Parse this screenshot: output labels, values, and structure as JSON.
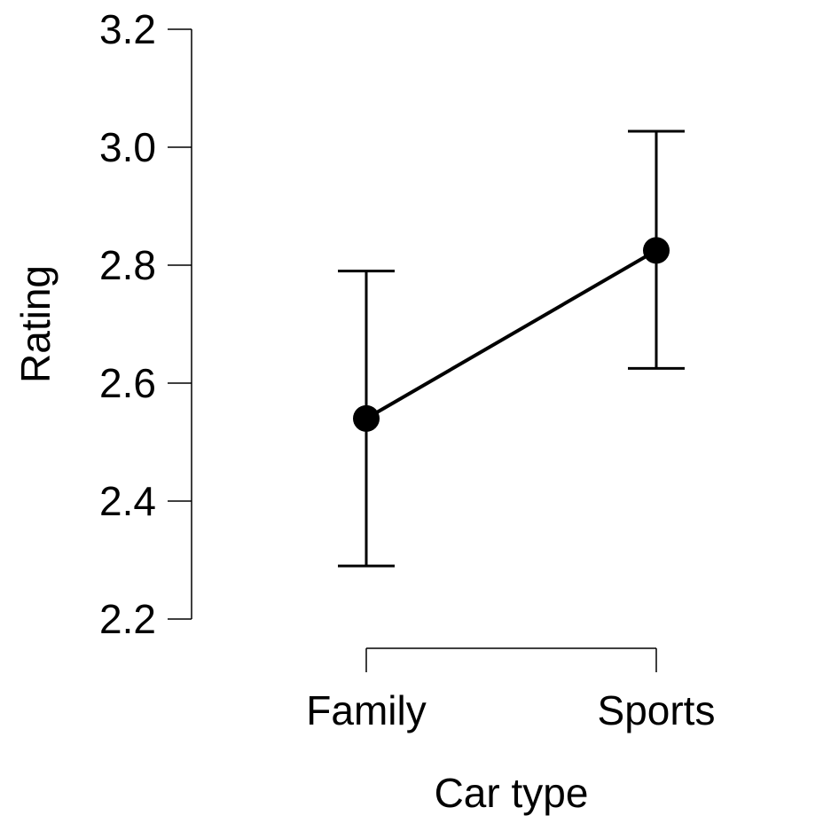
{
  "chart_data": {
    "type": "line",
    "xlabel": "Car type",
    "ylabel": "Rating",
    "ylim": [
      2.2,
      3.2
    ],
    "yticks": [
      "2.2",
      "2.4",
      "2.6",
      "2.8",
      "3.0",
      "3.2"
    ],
    "categories": [
      "Family",
      "Sports"
    ],
    "series": [
      {
        "values": [
          2.54,
          2.825
        ],
        "error_lower": [
          2.29,
          2.625
        ],
        "error_upper": [
          2.79,
          3.027
        ]
      }
    ],
    "grid": false,
    "legend": "none",
    "colors": {
      "ink": "#000000",
      "background": "#ffffff"
    }
  }
}
